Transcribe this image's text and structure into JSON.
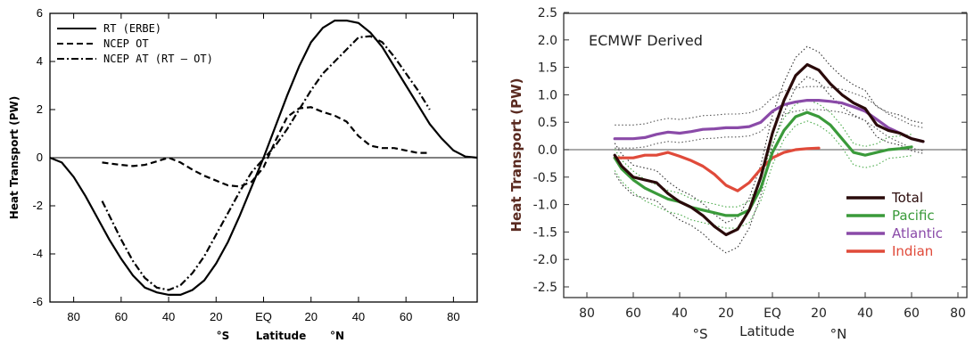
{
  "chart_data": [
    {
      "type": "line",
      "title": "",
      "xlabel": "Latitude",
      "ylabel": "Heat Transport (PW)",
      "xlim": [
        -90,
        90
      ],
      "ylim": [
        -6,
        6
      ],
      "x_ticks": [
        {
          "value": -80,
          "label": "80"
        },
        {
          "value": -60,
          "label": "60"
        },
        {
          "value": -40,
          "label": "40"
        },
        {
          "value": -20,
          "label": "20"
        },
        {
          "value": 0,
          "label": "EQ"
        },
        {
          "value": 20,
          "label": "20"
        },
        {
          "value": 40,
          "label": "40"
        },
        {
          "value": 60,
          "label": "60"
        },
        {
          "value": 80,
          "label": "80"
        }
      ],
      "y_ticks": [
        {
          "value": -6,
          "label": "-6"
        },
        {
          "value": -4,
          "label": "-4"
        },
        {
          "value": -2,
          "label": "-2"
        },
        {
          "value": 0,
          "label": "0"
        },
        {
          "value": 2,
          "label": "2"
        },
        {
          "value": 4,
          "label": "4"
        },
        {
          "value": 6,
          "label": "6"
        }
      ],
      "hemisphere_labels": {
        "south": "°S",
        "north": "°N"
      },
      "legend_position": "top-left",
      "series": [
        {
          "name": "RT (ERBE)",
          "style": "solid",
          "x": [
            -90,
            -85,
            -80,
            -75,
            -70,
            -65,
            -60,
            -55,
            -50,
            -45,
            -40,
            -35,
            -30,
            -25,
            -20,
            -15,
            -10,
            -5,
            0,
            5,
            10,
            15,
            20,
            25,
            30,
            35,
            40,
            45,
            50,
            55,
            60,
            65,
            70,
            75,
            80,
            85,
            90
          ],
          "y": [
            0,
            -0.2,
            -0.8,
            -1.6,
            -2.5,
            -3.4,
            -4.2,
            -4.9,
            -5.4,
            -5.6,
            -5.7,
            -5.7,
            -5.5,
            -5.1,
            -4.4,
            -3.5,
            -2.4,
            -1.2,
            0,
            1.3,
            2.6,
            3.8,
            4.8,
            5.4,
            5.7,
            5.7,
            5.6,
            5.2,
            4.6,
            3.8,
            3.0,
            2.2,
            1.4,
            0.8,
            0.3,
            0.05,
            0
          ]
        },
        {
          "name": "NCEP OT",
          "style": "dashed",
          "x": [
            -68,
            -60,
            -55,
            -50,
            -45,
            -40,
            -35,
            -30,
            -25,
            -20,
            -15,
            -10,
            -5,
            0,
            5,
            10,
            15,
            20,
            25,
            30,
            35,
            40,
            45,
            50,
            55,
            60,
            65,
            70
          ],
          "y": [
            -0.2,
            -0.3,
            -0.35,
            -0.3,
            -0.15,
            0,
            -0.2,
            -0.5,
            -0.75,
            -0.95,
            -1.15,
            -1.2,
            -1.0,
            -0.4,
            0.7,
            1.7,
            2.05,
            2.1,
            1.9,
            1.75,
            1.5,
            0.9,
            0.5,
            0.4,
            0.4,
            0.3,
            0.2,
            0.2
          ]
        },
        {
          "name": "NCEP AT (RT – OT)",
          "style": "dashdot",
          "x": [
            -68,
            -65,
            -60,
            -55,
            -50,
            -45,
            -40,
            -35,
            -30,
            -25,
            -20,
            -15,
            -10,
            -5,
            0,
            5,
            10,
            15,
            20,
            25,
            30,
            35,
            40,
            45,
            50,
            55,
            60,
            65,
            70
          ],
          "y": [
            -1.8,
            -2.4,
            -3.4,
            -4.3,
            -5.0,
            -5.4,
            -5.5,
            -5.3,
            -4.8,
            -4.1,
            -3.2,
            -2.3,
            -1.4,
            -0.6,
            -0.05,
            0.5,
            1.2,
            2.0,
            2.8,
            3.5,
            4.0,
            4.5,
            5.0,
            5.05,
            4.8,
            4.2,
            3.5,
            2.8,
            2.0
          ]
        }
      ]
    },
    {
      "type": "line",
      "title": "ECMWF Derived",
      "xlabel": "Latitude",
      "ylabel": "Heat Transport (PW)",
      "xlim": [
        -90,
        90
      ],
      "ylim": [
        -2.5,
        2.5
      ],
      "x_ticks": [
        {
          "value": -80,
          "label": "80"
        },
        {
          "value": -60,
          "label": "60"
        },
        {
          "value": -40,
          "label": "40"
        },
        {
          "value": -20,
          "label": "20"
        },
        {
          "value": 0,
          "label": "EQ"
        },
        {
          "value": 20,
          "label": "20"
        },
        {
          "value": 40,
          "label": "40"
        },
        {
          "value": 60,
          "label": "60"
        },
        {
          "value": 80,
          "label": "80"
        }
      ],
      "y_ticks": [
        {
          "value": -2.5,
          "label": "-2.5"
        },
        {
          "value": -2.0,
          "label": "-2.0"
        },
        {
          "value": -1.5,
          "label": "-1.5"
        },
        {
          "value": -1.0,
          "label": "-1.0"
        },
        {
          "value": -0.5,
          "label": "-0.5"
        },
        {
          "value": 0.0,
          "label": "0.0"
        },
        {
          "value": 0.5,
          "label": "0.5"
        },
        {
          "value": 1.0,
          "label": "1.0"
        },
        {
          "value": 1.5,
          "label": "1.5"
        },
        {
          "value": 2.0,
          "label": "2.0"
        },
        {
          "value": 2.5,
          "label": "2.5"
        }
      ],
      "hemisphere_labels": {
        "south": "°S",
        "north": "°N"
      },
      "legend_position": "bottom-right",
      "series": [
        {
          "name": "Total",
          "color": "#2a0a0a",
          "x": [
            -68,
            -65,
            -60,
            -55,
            -50,
            -45,
            -40,
            -35,
            -30,
            -25,
            -20,
            -15,
            -10,
            -5,
            0,
            5,
            10,
            15,
            20,
            25,
            30,
            35,
            40,
            45,
            50,
            55,
            60,
            65
          ],
          "y": [
            -0.1,
            -0.3,
            -0.5,
            -0.55,
            -0.6,
            -0.8,
            -0.95,
            -1.05,
            -1.2,
            -1.4,
            -1.55,
            -1.45,
            -1.1,
            -0.5,
            0.3,
            0.9,
            1.35,
            1.55,
            1.45,
            1.2,
            1.0,
            0.85,
            0.75,
            0.45,
            0.35,
            0.3,
            0.2,
            0.15
          ]
        },
        {
          "name": "Pacific",
          "color": "#3a9a3a",
          "x": [
            -68,
            -65,
            -60,
            -55,
            -50,
            -45,
            -40,
            -35,
            -30,
            -25,
            -20,
            -15,
            -10,
            -5,
            0,
            5,
            10,
            15,
            20,
            25,
            30,
            35,
            40,
            45,
            50,
            55,
            60
          ],
          "y": [
            -0.15,
            -0.35,
            -0.55,
            -0.7,
            -0.8,
            -0.9,
            -0.95,
            -1.05,
            -1.1,
            -1.15,
            -1.2,
            -1.2,
            -1.1,
            -0.7,
            -0.05,
            0.35,
            0.6,
            0.68,
            0.6,
            0.45,
            0.2,
            -0.05,
            -0.1,
            -0.05,
            0.0,
            0.02,
            0.05
          ]
        },
        {
          "name": "Atlantic",
          "color": "#8a4aa8",
          "x": [
            -68,
            -60,
            -55,
            -50,
            -45,
            -40,
            -35,
            -30,
            -25,
            -20,
            -15,
            -10,
            -5,
            0,
            5,
            10,
            15,
            20,
            25,
            30,
            35,
            40,
            45,
            50,
            55,
            60,
            65
          ],
          "y": [
            0.2,
            0.2,
            0.22,
            0.28,
            0.32,
            0.3,
            0.33,
            0.37,
            0.38,
            0.4,
            0.4,
            0.42,
            0.5,
            0.7,
            0.82,
            0.87,
            0.9,
            0.9,
            0.88,
            0.85,
            0.78,
            0.7,
            0.55,
            0.4,
            0.3,
            0.2,
            0.15
          ]
        },
        {
          "name": "Indian",
          "color": "#e04a3a",
          "x": [
            -68,
            -60,
            -55,
            -50,
            -45,
            -40,
            -35,
            -30,
            -25,
            -20,
            -15,
            -10,
            -5,
            0,
            5,
            10,
            15,
            20
          ],
          "y": [
            -0.15,
            -0.15,
            -0.1,
            -0.1,
            -0.05,
            -0.12,
            -0.2,
            -0.3,
            -0.45,
            -0.65,
            -0.75,
            -0.6,
            -0.35,
            -0.15,
            -0.05,
            0.0,
            0.02,
            0.03
          ]
        }
      ]
    }
  ]
}
